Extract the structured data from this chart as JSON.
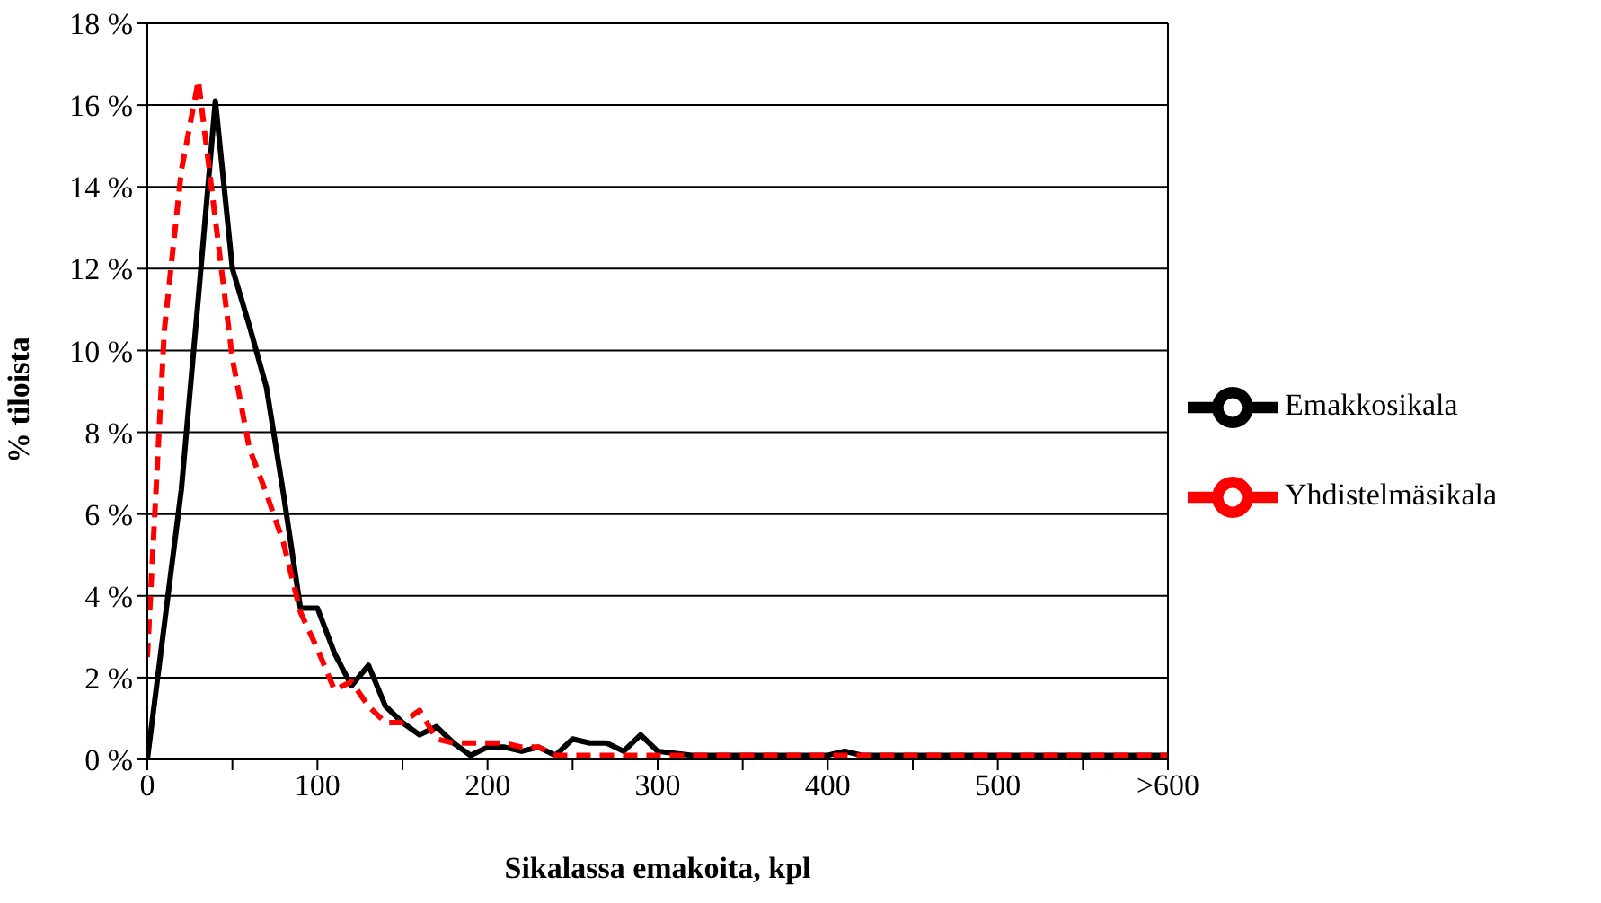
{
  "chart_data": {
    "type": "line",
    "xlabel": "Sikalassa emakoita, kpl",
    "ylabel": "% tiloista",
    "xlim": [
      0,
      600
    ],
    "xticks": [
      0,
      {
        "value": 50,
        "label": null
      },
      100,
      {
        "value": 150,
        "label": null
      },
      200,
      {
        "value": 250,
        "label": null
      },
      300,
      {
        "value": 350,
        "label": null
      },
      400,
      {
        "value": 450,
        "label": null
      },
      500,
      {
        "value": 550,
        "label": null
      },
      {
        "value": 600,
        "label": ">600"
      }
    ],
    "ylim": [
      0,
      18
    ],
    "yticks": [
      {
        "value": 0,
        "label": "0 %"
      },
      {
        "value": 2,
        "label": "2 %"
      },
      {
        "value": 4,
        "label": "4 %"
      },
      {
        "value": 6,
        "label": "6 %"
      },
      {
        "value": 8,
        "label": "8 %"
      },
      {
        "value": 10,
        "label": "10 %"
      },
      {
        "value": 12,
        "label": "12 %"
      },
      {
        "value": 14,
        "label": "14 %"
      },
      {
        "value": 16,
        "label": "16 %"
      },
      {
        "value": 18,
        "label": "18 %"
      }
    ],
    "grid": "y",
    "legend": "right",
    "series": [
      {
        "name": "Emakkosikala",
        "color": "#000000",
        "line_style": "solid",
        "x": [
          0,
          10,
          20,
          30,
          40,
          50,
          60,
          70,
          80,
          90,
          100,
          110,
          120,
          130,
          140,
          150,
          160,
          170,
          180,
          190,
          200,
          210,
          220,
          230,
          240,
          250,
          260,
          270,
          280,
          290,
          300,
          320,
          340,
          360,
          380,
          400,
          410,
          420,
          440,
          460,
          480,
          500,
          510,
          520,
          560,
          600
        ],
        "values": [
          0,
          3.3,
          6.6,
          11.3,
          16.1,
          12,
          10.6,
          9.1,
          6.5,
          3.7,
          3.7,
          2.6,
          1.8,
          2.3,
          1.3,
          0.9,
          0.6,
          0.8,
          0.4,
          0.1,
          0.3,
          0.3,
          0.2,
          0.3,
          0.1,
          0.5,
          0.4,
          0.4,
          0.2,
          0.6,
          0.2,
          0.1,
          0.1,
          0.1,
          0.1,
          0.1,
          0.2,
          0.1,
          0.1,
          0.1,
          0.1,
          0.1,
          0.1,
          0.1,
          0.1,
          0.1
        ]
      },
      {
        "name": "Yhdistelmäsikala",
        "color": "#ff0000",
        "line_style": "dashed",
        "x": [
          0,
          10,
          20,
          30,
          40,
          50,
          60,
          70,
          80,
          90,
          100,
          110,
          120,
          130,
          140,
          150,
          160,
          170,
          180,
          190,
          200,
          210,
          220,
          230,
          240,
          250,
          260,
          300,
          350,
          400,
          450,
          500,
          550,
          600
        ],
        "values": [
          2.5,
          10.5,
          14.4,
          16.6,
          13.2,
          9.8,
          7.6,
          6.5,
          5.3,
          3.6,
          2.7,
          1.7,
          1.9,
          1.3,
          0.9,
          0.9,
          1.2,
          0.5,
          0.4,
          0.4,
          0.4,
          0.4,
          0.3,
          0.3,
          0.1,
          0.1,
          0.1,
          0.1,
          0.1,
          0.1,
          0.1,
          0.1,
          0.1,
          0.1
        ]
      }
    ]
  }
}
